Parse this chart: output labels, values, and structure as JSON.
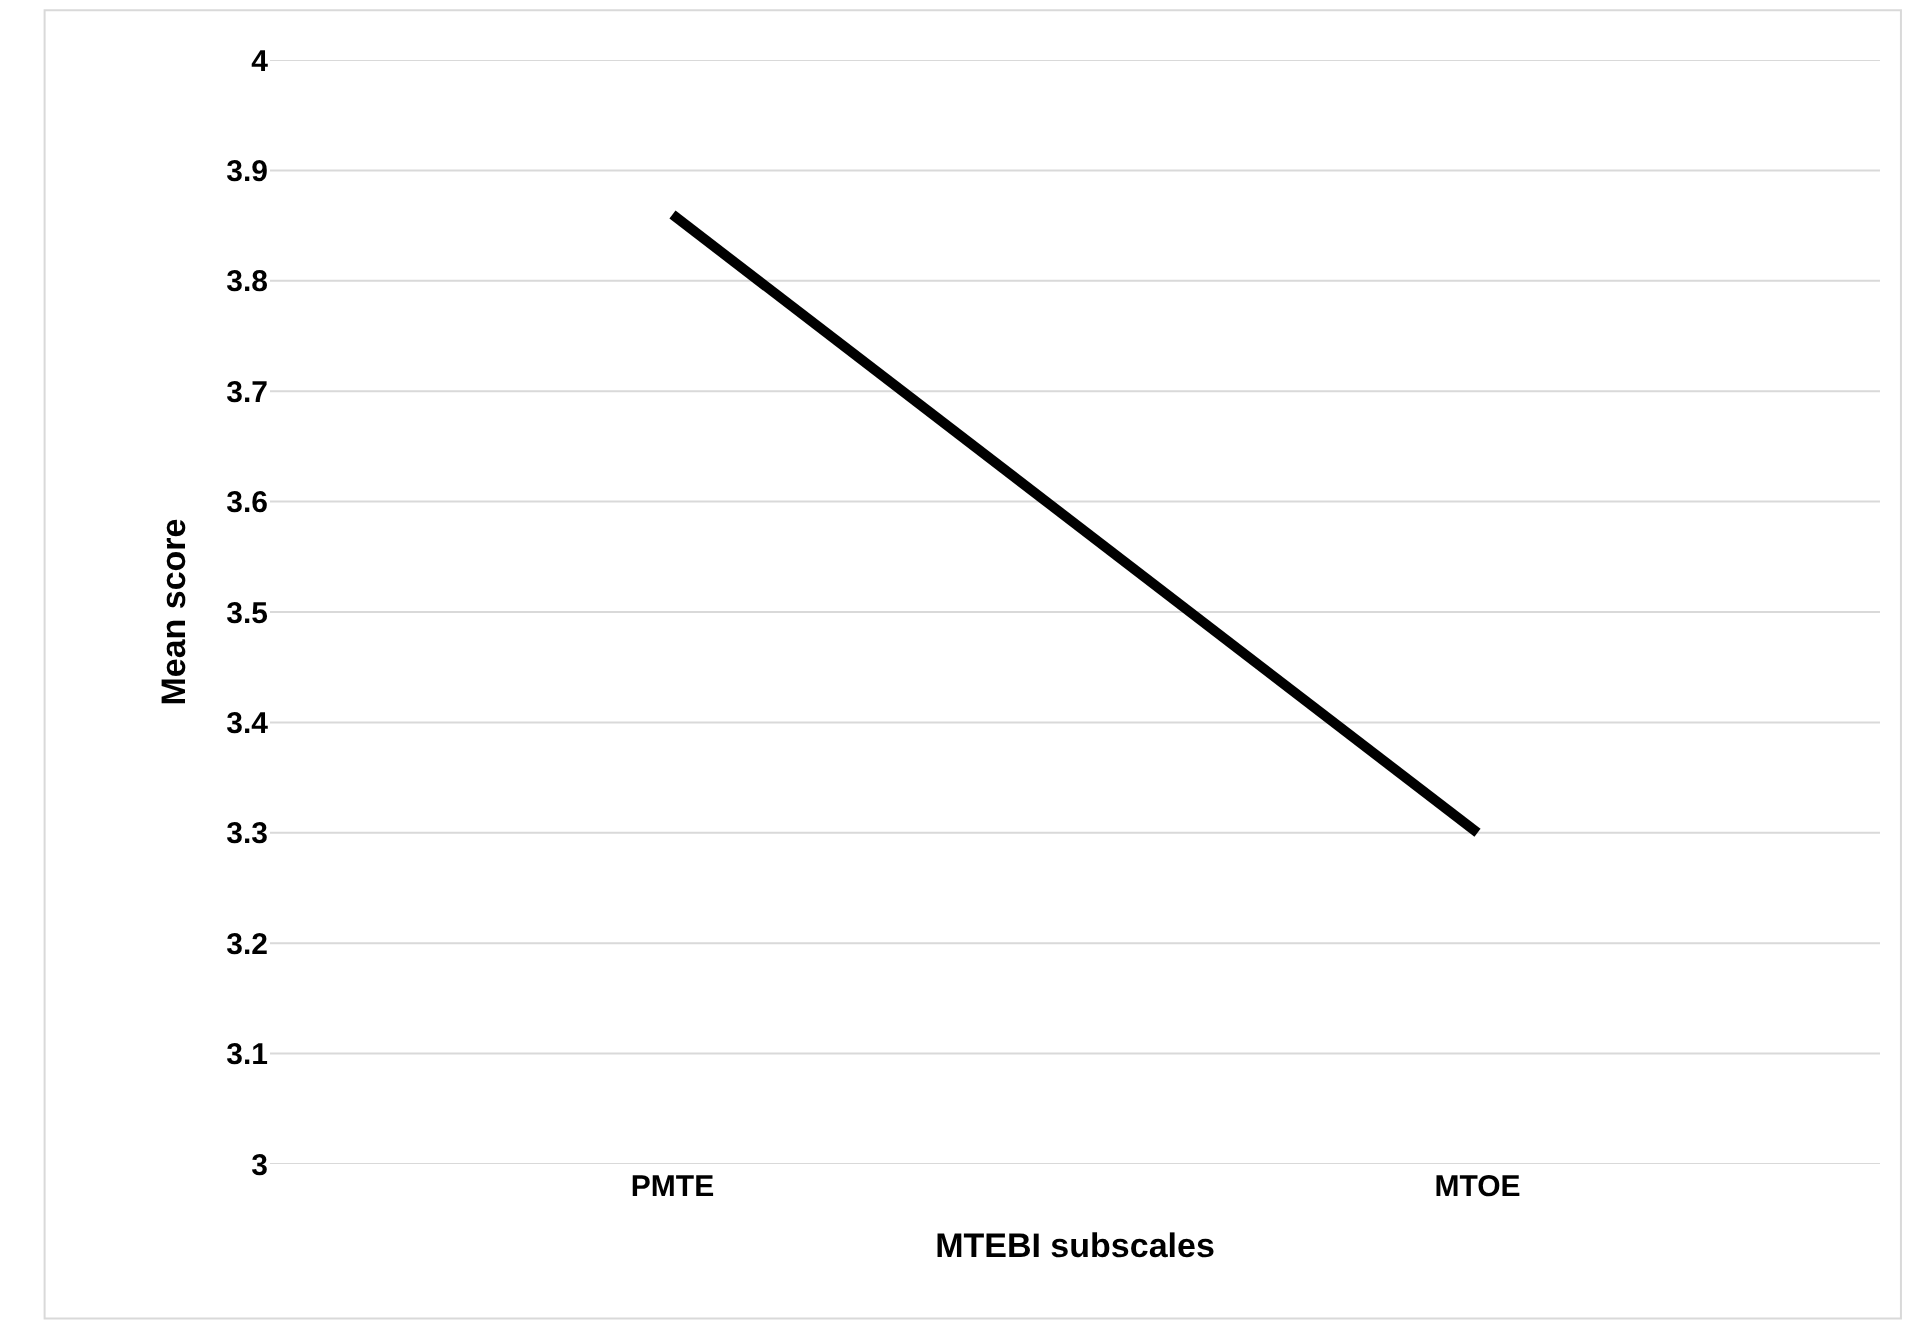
{
  "chart_data": {
    "type": "line",
    "xlabel": "MTEBI subscales",
    "ylabel": "Mean score",
    "categories": [
      "PMTE",
      "MTOE"
    ],
    "series": [
      {
        "color": "#000000",
        "values": [
          3.86,
          3.3
        ]
      }
    ],
    "ylim": [
      3,
      4
    ],
    "yticks": [
      3,
      3.1,
      3.2,
      3.3,
      3.4,
      3.5,
      3.6,
      3.7,
      3.8,
      3.9,
      4
    ],
    "grid": "y",
    "marker": "none",
    "line_style": "solid"
  }
}
